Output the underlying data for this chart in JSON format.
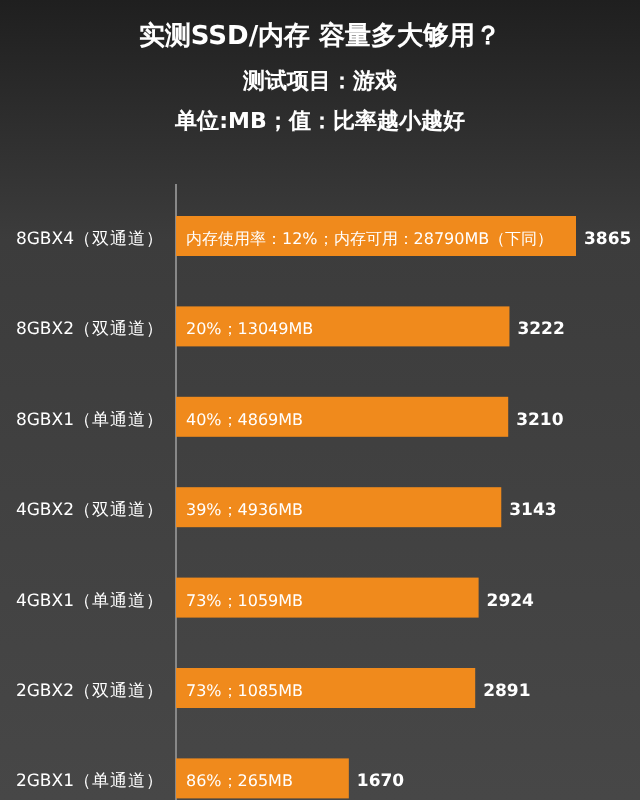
{
  "chart_data": {
    "type": "bar",
    "orientation": "horizontal",
    "title": "实测SSD/内存  容量多大够用？",
    "subtitle": "测试项目：游戏",
    "categories": [
      "8GBX4（双通道）",
      "8GBX2（双通道）",
      "8GBX1（单通道）",
      "4GBX2（双通道）",
      "4GBX1（单通道）",
      "2GBX2（双通道）",
      "2GBX1（单通道）"
    ],
    "values": [
      3865,
      3222,
      3210,
      3143,
      2924,
      2891,
      1670
    ],
    "color": "#f08a1c",
    "data_labels": true,
    "annotations": [
      "单位:MB；值：比率越小越好",
      "内存使用率：12%；内存可用：28790MB（下同）",
      "20%；13049MB",
      "40%；4869MB",
      "39%；4936MB",
      "73%；1059MB",
      "73%；1085MB",
      "86%；265MB"
    ]
  }
}
